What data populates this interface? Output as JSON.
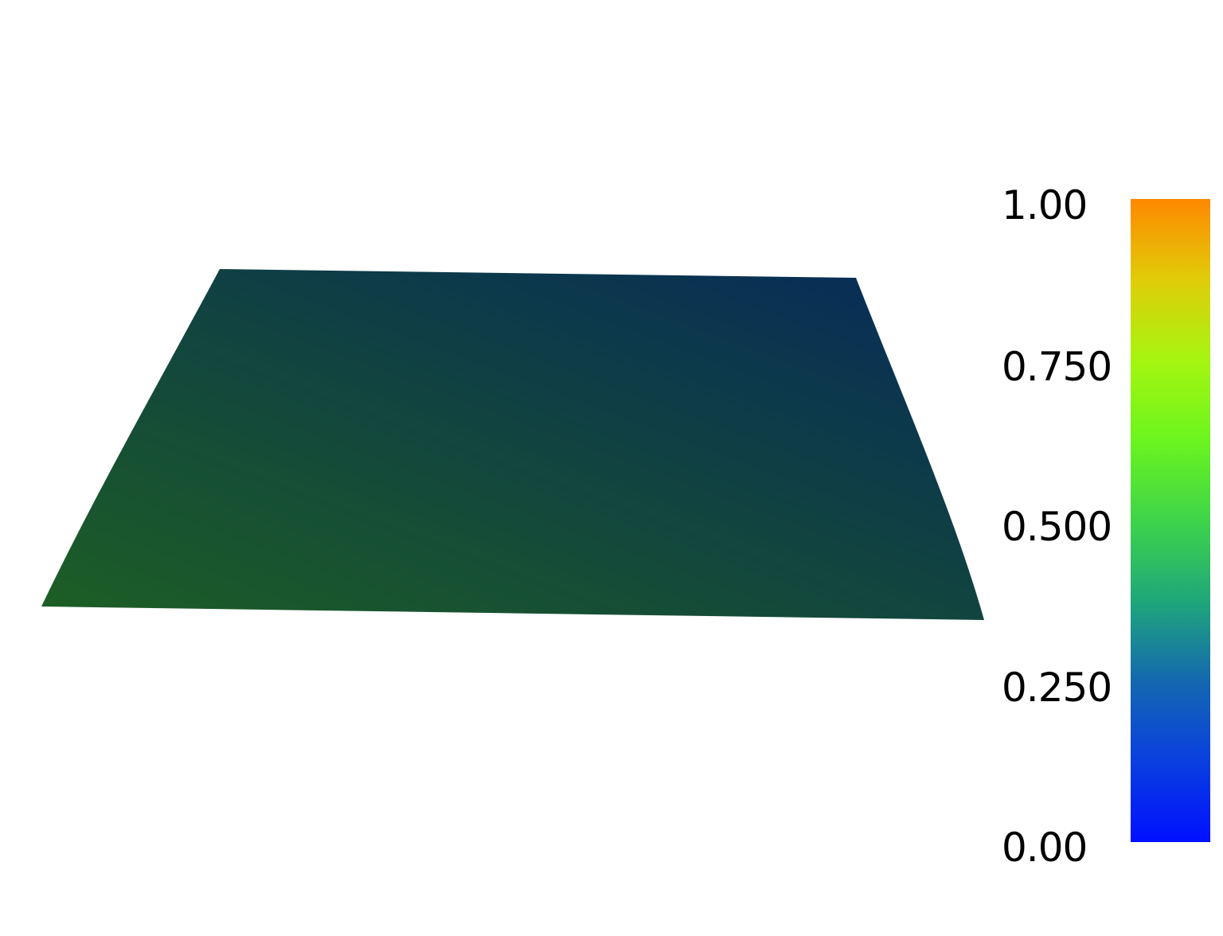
{
  "render": {
    "background": "#ffffff",
    "surface_colors": {
      "top_right": "#062a5a",
      "top_left": "#0f3d47",
      "bottom_left": "#1d5f24",
      "bottom_right": "#0f4742"
    }
  },
  "colorbar": {
    "range": [
      0.0,
      1.0
    ],
    "colormap_stops": [
      {
        "value": 0.0,
        "color": "#0010ff"
      },
      {
        "value": 0.125,
        "color": "#0a3fe0"
      },
      {
        "value": 0.25,
        "color": "#1468b0"
      },
      {
        "value": 0.375,
        "color": "#1fa77a"
      },
      {
        "value": 0.5,
        "color": "#3ed44a"
      },
      {
        "value": 0.625,
        "color": "#6bf51e"
      },
      {
        "value": 0.75,
        "color": "#a6f510"
      },
      {
        "value": 0.875,
        "color": "#e0cc08"
      },
      {
        "value": 1.0,
        "color": "#ff8800"
      }
    ],
    "ticks": [
      {
        "value": 1.0,
        "label": "1.00"
      },
      {
        "value": 0.75,
        "label": "0.750"
      },
      {
        "value": 0.5,
        "label": "0.500"
      },
      {
        "value": 0.25,
        "label": "0.250"
      },
      {
        "value": 0.0,
        "label": "0.00"
      }
    ]
  }
}
